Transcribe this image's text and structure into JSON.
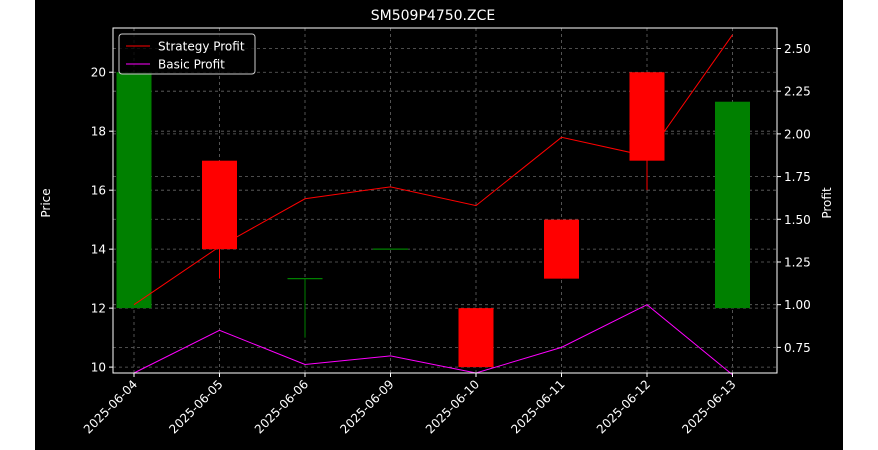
{
  "chart_data": {
    "type": "candlestick",
    "title": "SM509P4750.ZCE",
    "ylabel": "Price",
    "ylabel_right": "Profit",
    "ylim": [
      9.8,
      21.5
    ],
    "ylim_right": [
      0.6,
      2.62
    ],
    "grid": true,
    "legend_position": "upper-left",
    "categories": [
      "2025-06-04",
      "2025-06-05",
      "2025-06-06",
      "2025-06-09",
      "2025-06-10",
      "2025-06-11",
      "2025-06-12",
      "2025-06-13"
    ],
    "y_ticks": [
      10,
      12,
      14,
      16,
      18,
      20
    ],
    "y_ticks_right": [
      "0.75",
      "1.00",
      "1.25",
      "1.50",
      "1.75",
      "2.00",
      "2.25",
      "2.50"
    ],
    "candles": [
      {
        "open": 12,
        "close": 20,
        "high": 20,
        "low": 12
      },
      {
        "open": 17,
        "close": 14,
        "high": 17,
        "low": 13
      },
      {
        "open": 13,
        "close": 13,
        "high": 13,
        "low": 11
      },
      {
        "open": 14,
        "close": 14,
        "high": 14,
        "low": 14
      },
      {
        "open": 12,
        "close": 10,
        "high": 12,
        "low": 10
      },
      {
        "open": 15,
        "close": 13,
        "high": 15,
        "low": 13
      },
      {
        "open": 20,
        "close": 17,
        "high": 20,
        "low": 16
      },
      {
        "open": 12,
        "close": 19,
        "high": 19,
        "low": 12
      }
    ],
    "series": [
      {
        "name": "Strategy Profit",
        "color": "#ff0000",
        "values": [
          1.0,
          1.34,
          1.62,
          1.69,
          1.58,
          1.98,
          1.87,
          2.58
        ]
      },
      {
        "name": "Basic Profit",
        "color": "#ff00ff",
        "values": [
          0.6,
          0.85,
          0.65,
          0.7,
          0.6,
          0.75,
          1.0,
          0.59
        ]
      }
    ],
    "up_color": "#008000",
    "down_color": "#ff0000"
  }
}
